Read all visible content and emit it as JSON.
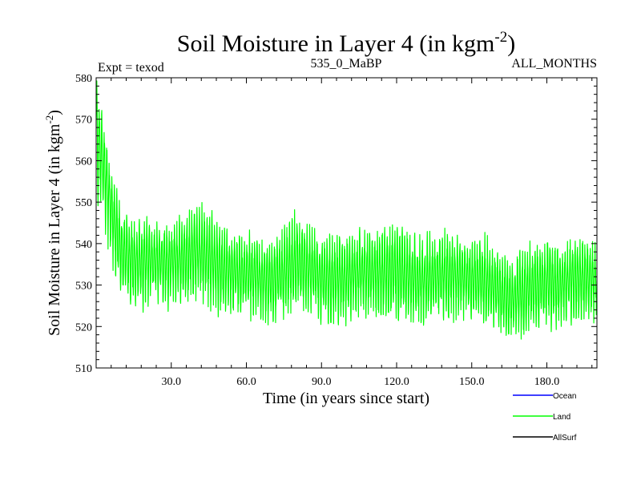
{
  "title": "Soil Moisture in Layer 4 (in kgm",
  "title_sup": "-2",
  "title_close": ")",
  "subtitle_left": "Expt = texod",
  "subtitle_center": "535_0_MaBP",
  "subtitle_right": "ALL_MONTHS",
  "colors": {
    "ocean": "#0000ff",
    "land": "#00ff00",
    "allsurf": "#000000"
  },
  "chart_data": {
    "type": "line",
    "title": "Soil Moisture in Layer 4 (in kgm-2)",
    "xlabel": "Time (in years since start)",
    "ylabel": "Soil Moisture in Layer 4 (in kgm",
    "ylabel_sup": "-2",
    "ylabel_close": ")",
    "xlim": [
      0,
      200
    ],
    "ylim": [
      510,
      580
    ],
    "xticks": [
      30,
      60,
      90,
      120,
      150,
      180
    ],
    "xtick_labels": [
      "30.0",
      "60.0",
      "90.0",
      "120.0",
      "150.0",
      "180.0"
    ],
    "yticks": [
      510,
      520,
      530,
      540,
      550,
      560,
      570,
      580
    ],
    "ytick_labels": [
      "510",
      "520",
      "530",
      "540",
      "550",
      "560",
      "570",
      "580"
    ],
    "legend": [
      "Ocean",
      "Land",
      "AllSurf"
    ],
    "legend_position": "bottom-right",
    "series": [
      {
        "name": "Land",
        "color": "#00ff00",
        "description": "monthly values; envelope of min/max by year",
        "x": [
          0,
          2,
          4,
          6,
          8,
          10,
          13,
          16,
          20,
          25,
          30,
          35,
          40,
          45,
          50,
          55,
          60,
          65,
          70,
          75,
          80,
          85,
          90,
          95,
          100,
          105,
          110,
          115,
          120,
          125,
          130,
          135,
          140,
          145,
          150,
          155,
          160,
          165,
          170,
          175,
          180,
          185,
          190,
          195,
          200
        ],
        "min": [
          548,
          545,
          540,
          535,
          530,
          527,
          523,
          522,
          524,
          525,
          523,
          524,
          524,
          523,
          522,
          522,
          521,
          520,
          518,
          520,
          522,
          521,
          520,
          518,
          520,
          522,
          521,
          520,
          520,
          518,
          519,
          521,
          520,
          521,
          520,
          520,
          518,
          515,
          516,
          518,
          518,
          519,
          520,
          520,
          521
        ],
        "max": [
          580,
          574,
          567,
          560,
          555,
          550,
          548,
          546,
          547,
          545,
          546,
          548,
          551,
          549,
          545,
          543,
          544,
          543,
          542,
          545,
          549,
          546,
          542,
          544,
          543,
          545,
          544,
          546,
          547,
          544,
          543,
          543,
          545,
          542,
          541,
          544,
          540,
          538,
          540,
          541,
          543,
          540,
          543,
          542,
          540
        ],
        "mean": [
          570,
          562,
          556,
          549,
          543,
          539,
          537,
          536,
          536,
          536,
          536,
          537,
          538,
          537,
          534,
          533,
          533,
          532,
          531,
          533,
          536,
          534,
          532,
          532,
          532,
          533,
          533,
          533,
          534,
          532,
          531,
          532,
          533,
          532,
          532,
          531,
          529,
          526,
          528,
          530,
          531,
          530,
          532,
          532,
          531
        ]
      },
      {
        "name": "Ocean",
        "color": "#0000ff",
        "x": [],
        "values": []
      },
      {
        "name": "AllSurf",
        "color": "#000000",
        "x": [],
        "values": []
      }
    ]
  }
}
